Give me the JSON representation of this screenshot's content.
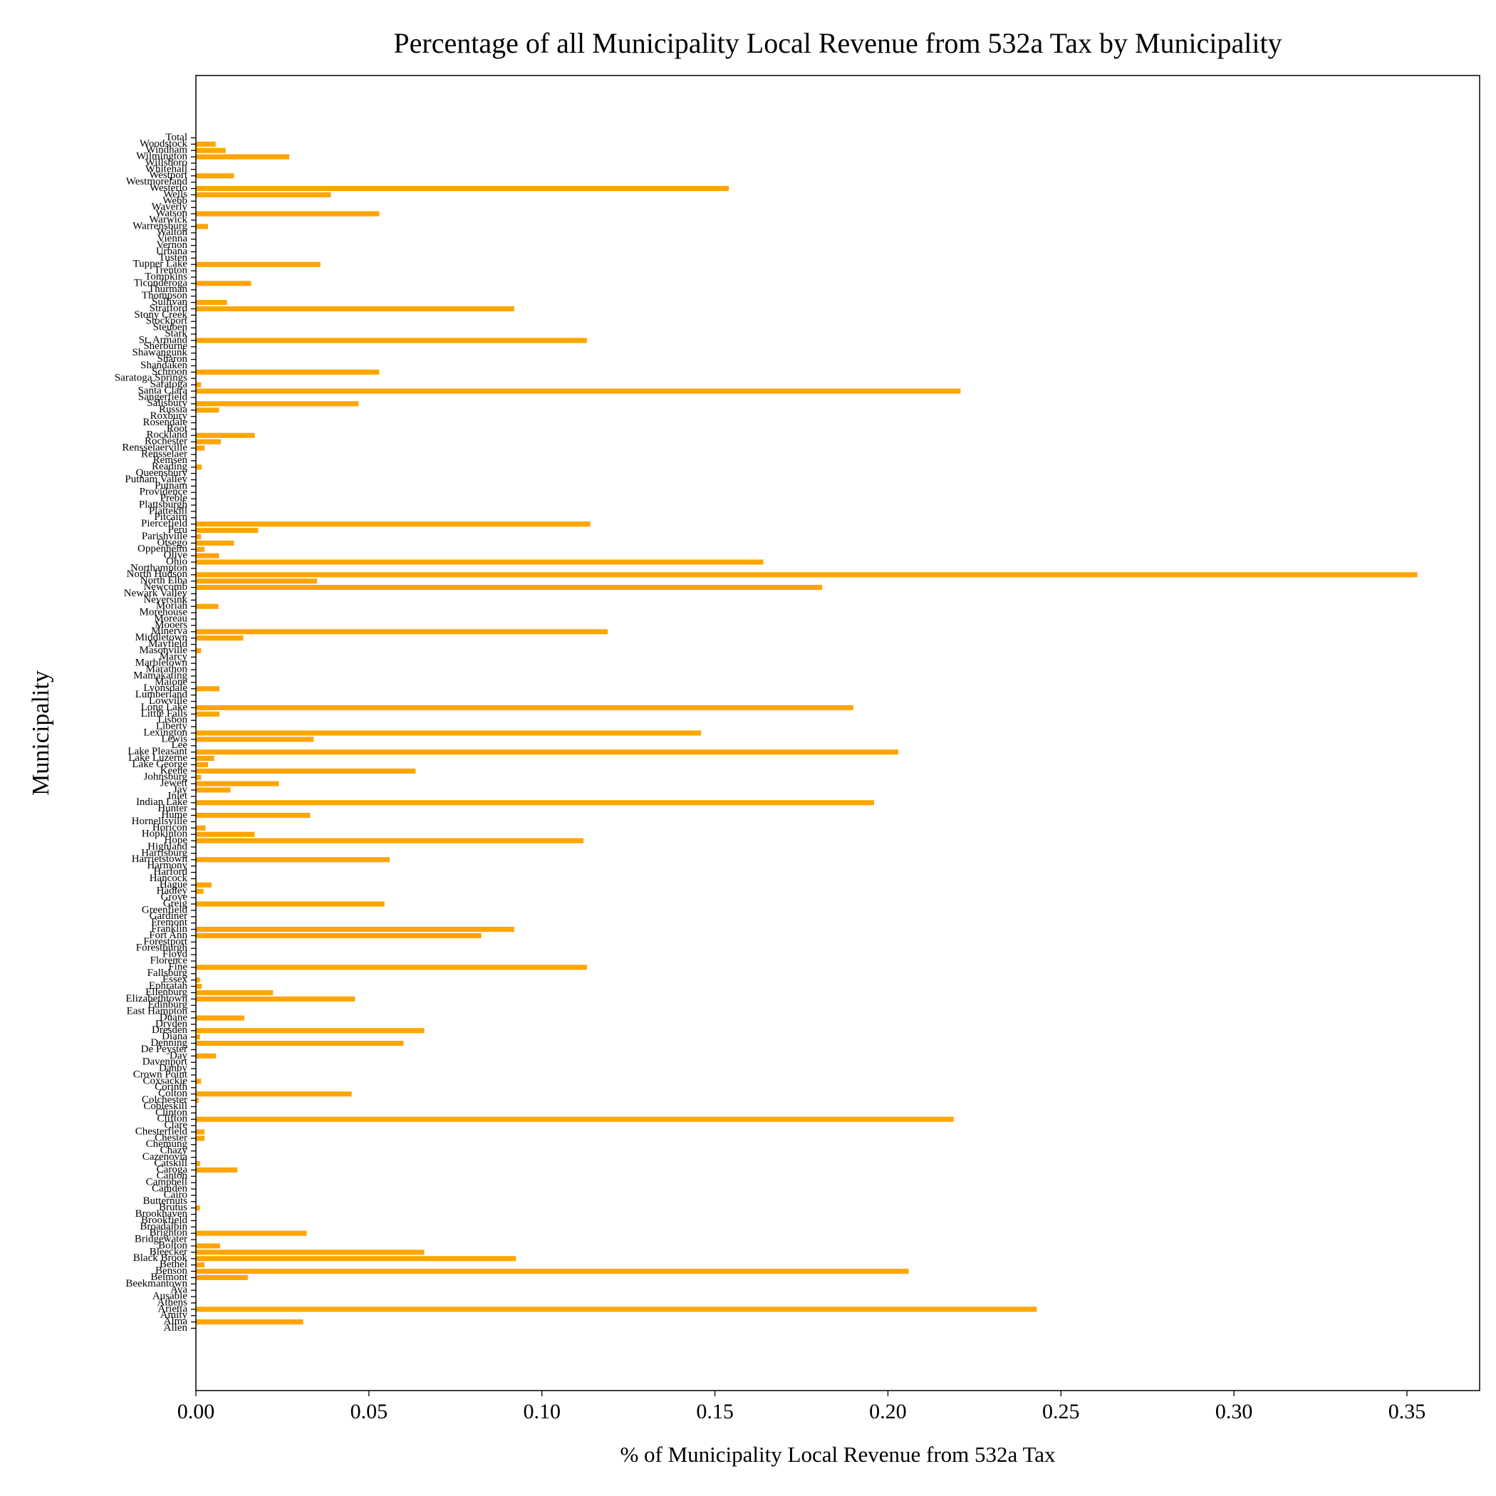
{
  "chart_data": {
    "type": "barh",
    "title": "Percentage of all Municipality Local Revenue from 532a Tax by Municipality",
    "xlabel": "% of Municipality Local Revenue from 532a Tax",
    "ylabel": "Municipality",
    "color": "#ffa500",
    "xlim": [
      0,
      0.371
    ],
    "xticks": [
      {
        "value": 0,
        "label": "0.00"
      },
      {
        "value": 0.05,
        "label": "0.05"
      },
      {
        "value": 0.1,
        "label": "0.10"
      },
      {
        "value": 0.15,
        "label": "0.15"
      },
      {
        "value": 0.2,
        "label": "0.20"
      },
      {
        "value": 0.25,
        "label": "0.25"
      },
      {
        "value": 0.3,
        "label": "0.30"
      },
      {
        "value": 0.35,
        "label": "0.35"
      }
    ],
    "categories": [
      "Allen",
      "Alma",
      "Amity",
      "Arietta",
      "Athens",
      "Ausable",
      "Ava",
      "Beekmantown",
      "Belmont",
      "Benson",
      "Bethel",
      "Black Brook",
      "Bleecker",
      "Bolton",
      "Bridgewater",
      "Brighton",
      "Broadalbin",
      "Brookfield",
      "Brookhaven",
      "Brutus",
      "Butternuts",
      "Cairo",
      "Camden",
      "Campbell",
      "Canton",
      "Caroga",
      "Catskill",
      "Cazenovia",
      "Chazy",
      "Chemung",
      "Chester",
      "Chesterfield",
      "Clare",
      "Clifton",
      "Clinton",
      "Cobleskill",
      "Colchester",
      "Colton",
      "Corinth",
      "Coxsackie",
      "Crown Point",
      "Danby",
      "Davenport",
      "Day",
      "De Peyster",
      "Denning",
      "Diana",
      "Dresden",
      "Dryden",
      "Duane",
      "East Hampton",
      "Edinburg",
      "Elizabethtown",
      "Ellenburg",
      "Ephratah",
      "Essex",
      "Fallsburg",
      "Fine",
      "Florence",
      "Floyd",
      "Forestburgh",
      "Forestport",
      "Fort Ann",
      "Franklin",
      "Fremont",
      "Gardiner",
      "Greenfield",
      "Greig",
      "Grove",
      "Hadley",
      "Hague",
      "Hancock",
      "Harford",
      "Harmony",
      "Harrietstown",
      "Harrisburg",
      "Highland",
      "Hope",
      "Hopkinton",
      "Horicon",
      "Hornellsville",
      "Hume",
      "Hunter",
      "Indian Lake",
      "Inlet",
      "Jay",
      "Jewett",
      "Johnsburg",
      "Keene",
      "Lake George",
      "Lake Luzerne",
      "Lake Pleasant",
      "Lee",
      "Lewis",
      "Lexington",
      "Liberty",
      "Lisbon",
      "Little Falls",
      "Long Lake",
      "Lowville",
      "Lumberland",
      "Lyonsdale",
      "Malone",
      "Mamakating",
      "Marathon",
      "Marbletown",
      "Marcy",
      "Masonville",
      "Mayfield",
      "Middletown",
      "Minerva",
      "Mooers",
      "Moreau",
      "Morehouse",
      "Moriah",
      "Neversink",
      "Newark Valley",
      "Newcomb",
      "North Elba",
      "North Hudson",
      "Northampton",
      "Ohio",
      "Olive",
      "Oppenheim",
      "Otsego",
      "Parishville",
      "Peru",
      "Piercefield",
      "Pitcairn",
      "Plattekill",
      "Plattsburgh",
      "Preble",
      "Providence",
      "Putnam",
      "Putnam Valley",
      "Queensbury",
      "Reading",
      "Remsen",
      "Rensselaer",
      "Rensselaerville",
      "Rochester",
      "Rockland",
      "Root",
      "Rosendale",
      "Roxbury",
      "Russia",
      "Salisbury",
      "Sangerfield",
      "Santa Clara",
      "Saratoga",
      "Saratoga Springs",
      "Schroon",
      "Shandaken",
      "Sharon",
      "Shawangunk",
      "Sherburne",
      "St. Armand",
      "Stark",
      "Steuben",
      "Stockport",
      "Stony Creek",
      "Stratford",
      "Sullivan",
      "Thompson",
      "Thurman",
      "Ticonderoga",
      "Tompkins",
      "Trenton",
      "Tupper Lake",
      "Tusten",
      "Urbana",
      "Vernon",
      "Vienna",
      "Walton",
      "Warrensburg",
      "Warwick",
      "Watson",
      "Waverly",
      "Webb",
      "Wells",
      "Westerlo",
      "Westmoreland",
      "Westport",
      "Whitehall",
      "Willsboro",
      "Wilmington",
      "Windham",
      "Woodstock",
      "Total"
    ],
    "values": [
      0,
      0.031,
      0,
      0.243,
      0,
      0,
      0,
      0,
      0.015,
      0.206,
      0.0025,
      0.0925,
      0.066,
      0.007,
      0,
      0.032,
      0,
      0,
      0,
      0.0012,
      0,
      0,
      0,
      0,
      0,
      0.012,
      0.0012,
      0,
      0,
      0,
      0.0025,
      0.0025,
      0,
      0.219,
      0,
      0,
      0.0008,
      0.045,
      0,
      0.0015,
      0,
      0,
      0,
      0.0058,
      0,
      0.06,
      0.0012,
      0.066,
      0,
      0.014,
      0,
      0,
      0.046,
      0.0223,
      0.0017,
      0.0012,
      0,
      0.113,
      0,
      0,
      0,
      0,
      0.0825,
      0.092,
      0,
      0,
      0,
      0.0545,
      0,
      0.0022,
      0.0045,
      0,
      0,
      0,
      0.056,
      0,
      0,
      0.112,
      0.017,
      0.0028,
      0,
      0.033,
      0,
      0.196,
      0,
      0.01,
      0.024,
      0.0015,
      0.0635,
      0.0035,
      0.0053,
      0.203,
      0,
      0.034,
      0.146,
      0,
      0,
      0.0068,
      0.19,
      0,
      0,
      0.0068,
      0,
      0,
      0,
      0,
      0,
      0.0015,
      0,
      0.0137,
      0.119,
      0,
      0,
      0,
      0.0065,
      0,
      0,
      0.181,
      0.035,
      0.353,
      0,
      0.164,
      0.0067,
      0.0025,
      0.011,
      0.0015,
      0.018,
      0.114,
      0,
      0,
      0,
      0,
      0,
      0,
      0,
      0,
      0.0017,
      0,
      0,
      0.0025,
      0.0072,
      0.017,
      0,
      0,
      0,
      0.0067,
      0.047,
      0,
      0.221,
      0.0015,
      0,
      0.053,
      0,
      0,
      0,
      0,
      0.113,
      0,
      0,
      0,
      0,
      0.092,
      0.009,
      0,
      0,
      0.016,
      0,
      0,
      0.036,
      0,
      0,
      0,
      0,
      0,
      0.0035,
      0,
      0.053,
      0,
      0,
      0.039,
      0.154,
      0,
      0.011,
      0,
      0,
      0.027,
      0.0086,
      0.0057,
      0
    ]
  }
}
